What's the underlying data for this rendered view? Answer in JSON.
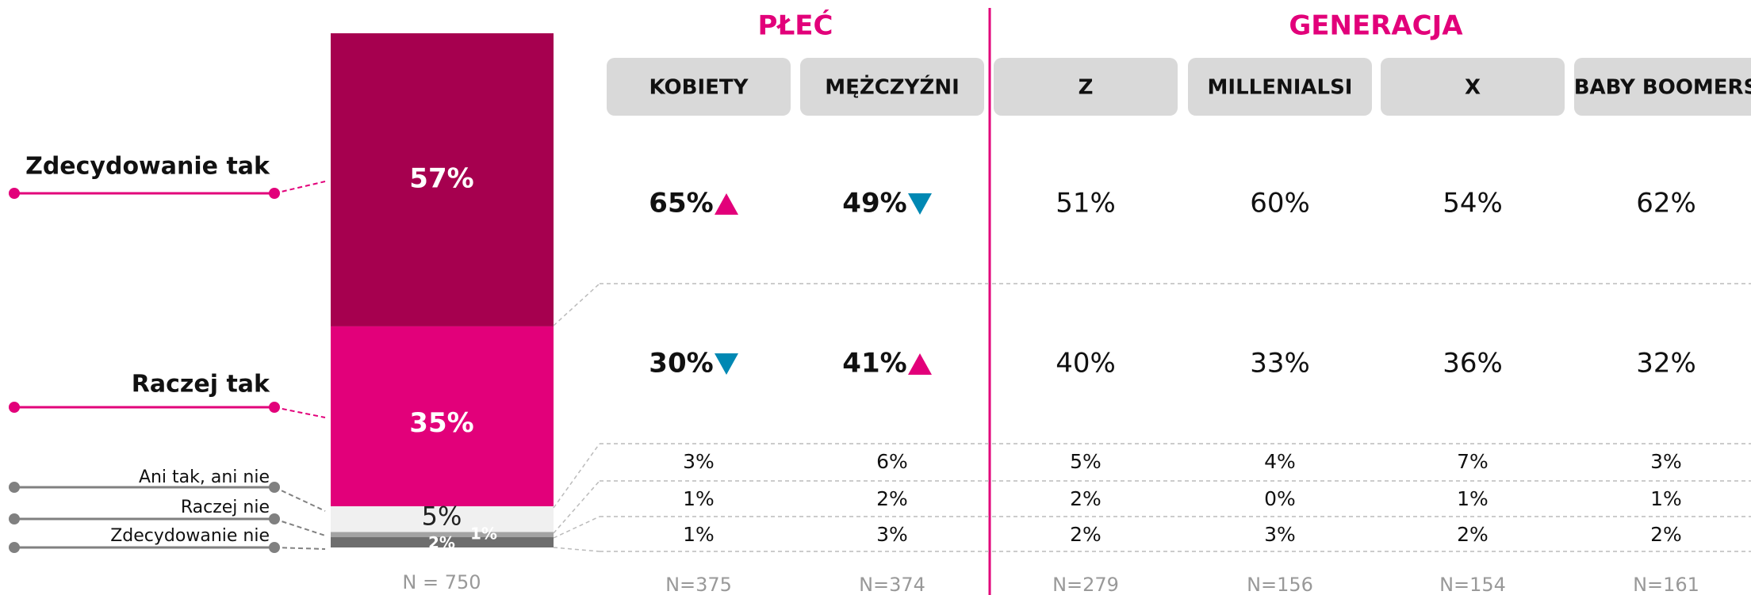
{
  "chart_data": {
    "type": "stacked_bar",
    "categories": [
      "Zdecydowanie tak",
      "Raczej tak",
      "Ani tak, ani nie",
      "Raczej nie",
      "Zdecydowanie nie"
    ],
    "values": [
      57,
      35,
      5,
      1,
      2
    ],
    "value_labels": [
      "57%",
      "35%",
      "5%",
      "1%",
      "2%"
    ],
    "colors": [
      "#a6004f",
      "#e2007a",
      "#f0f0f0",
      "#a3a3a3",
      "#6e6e6e"
    ],
    "n_label": "N = 750"
  },
  "table": {
    "groups": [
      {
        "name": "PŁEĆ",
        "span": 2
      },
      {
        "name": "GENERACJA",
        "span": 4
      }
    ],
    "columns": [
      "KOBIETY",
      "MĘŻCZYŹNI",
      "Z",
      "MILLENIALSI",
      "X",
      "BABY BOOMERS"
    ],
    "rows": [
      [
        "65%",
        "49%",
        "51%",
        "60%",
        "54%",
        "62%"
      ],
      [
        "30%",
        "41%",
        "40%",
        "33%",
        "36%",
        "32%"
      ],
      [
        "3%",
        "6%",
        "5%",
        "4%",
        "7%",
        "3%"
      ],
      [
        "1%",
        "2%",
        "2%",
        "0%",
        "1%",
        "1%"
      ],
      [
        "1%",
        "3%",
        "2%",
        "3%",
        "2%",
        "2%"
      ]
    ],
    "significance": [
      [
        "up",
        "down",
        null,
        null,
        null,
        null
      ],
      [
        "down",
        "up",
        null,
        null,
        null,
        null
      ]
    ],
    "n": [
      "N=375",
      "N=374",
      "N=279",
      "N=156",
      "N=154",
      "N=161"
    ]
  }
}
